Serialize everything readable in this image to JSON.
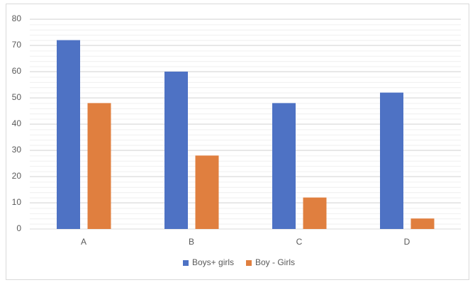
{
  "chart_data": {
    "type": "bar",
    "categories": [
      "A",
      "B",
      "C",
      "D"
    ],
    "series": [
      {
        "name": "Boys+ girls",
        "color": "#4e72c4",
        "values": [
          72,
          60,
          48,
          52
        ]
      },
      {
        "name": "Boy - Girls",
        "color": "#e07f3f",
        "values": [
          48,
          28,
          12,
          4
        ]
      }
    ],
    "ylim": [
      0,
      80
    ],
    "yticks": [
      0,
      10,
      20,
      30,
      40,
      50,
      60,
      70,
      80
    ],
    "grid": true,
    "legend": "bottom"
  }
}
